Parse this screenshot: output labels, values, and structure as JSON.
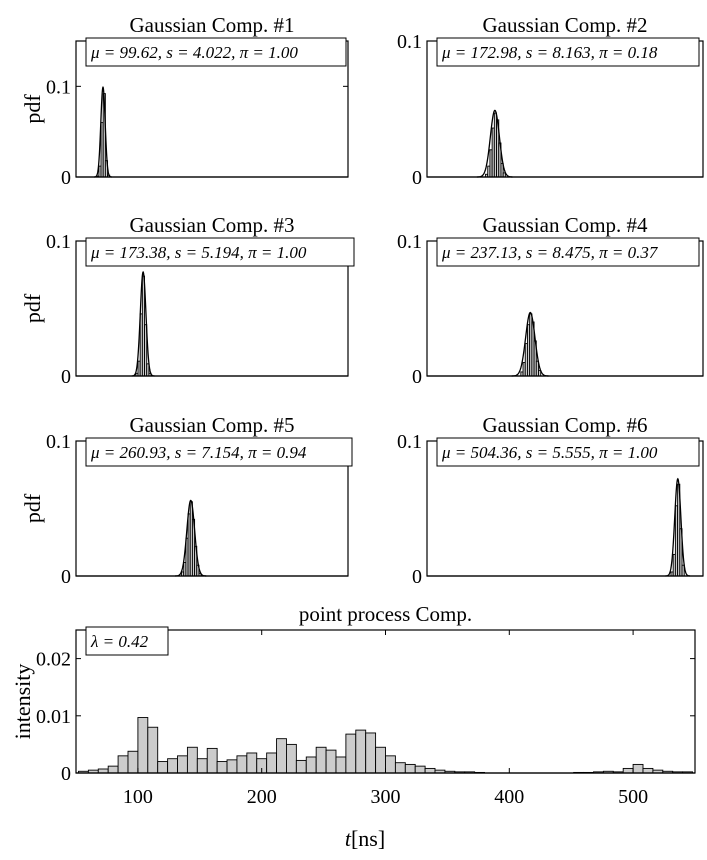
{
  "figure": {
    "xlabel": "t[ns]",
    "xlabel_main": "t",
    "xlabel_unit": "[ns]"
  },
  "colors": {
    "bar_fill": "#cccccc",
    "stroke": "#000000",
    "background": "#ffffff"
  },
  "chart_data": [
    {
      "type": "bar",
      "title": "Gaussian Comp. #1",
      "ylabel": "pdf",
      "annotation": "μ = 99.62, s = 4.022, π = 1.00",
      "mu": 99.62,
      "s": 4.022,
      "pi": 1.0,
      "xlim": [
        50,
        550
      ],
      "ylim": [
        0,
        0.15
      ],
      "yticks": [
        0,
        0.1
      ],
      "ytick_labels": [
        "0",
        "0.1"
      ],
      "bin_width": 4,
      "bins": [
        [
          88,
          0.001
        ],
        [
          92,
          0.012
        ],
        [
          96,
          0.06
        ],
        [
          100,
          0.092
        ],
        [
          104,
          0.018
        ],
        [
          108,
          0.002
        ]
      ],
      "curve": {
        "peak": 0.099,
        "sigma": 4.022
      }
    },
    {
      "type": "bar",
      "title": "Gaussian Comp. #2",
      "ylabel": "",
      "annotation": "μ = 172.98, s = 8.163, π = 0.18",
      "mu": 172.98,
      "s": 8.163,
      "pi": 0.18,
      "xlim": [
        50,
        550
      ],
      "ylim": [
        0,
        0.1
      ],
      "yticks": [
        0,
        0.1
      ],
      "ytick_labels": [
        "0",
        "0.1"
      ],
      "bin_width": 4,
      "bins": [
        [
          156,
          0.002
        ],
        [
          160,
          0.008
        ],
        [
          164,
          0.02
        ],
        [
          168,
          0.036
        ],
        [
          172,
          0.047
        ],
        [
          176,
          0.042
        ],
        [
          180,
          0.025
        ],
        [
          184,
          0.01
        ],
        [
          188,
          0.003
        ]
      ],
      "curve": {
        "peak": 0.049,
        "sigma": 8.163
      }
    },
    {
      "type": "bar",
      "title": "Gaussian Comp. #3",
      "ylabel": "pdf",
      "annotation": "μ = 173.38, s = 5.194, π = 1.00",
      "mu": 173.38,
      "s": 5.194,
      "pi": 1.0,
      "xlim": [
        50,
        550
      ],
      "ylim": [
        0,
        0.1
      ],
      "yticks": [
        0,
        0.1
      ],
      "ytick_labels": [
        "0",
        "0.1"
      ],
      "bin_width": 4,
      "bins": [
        [
          160,
          0.002
        ],
        [
          164,
          0.011
        ],
        [
          168,
          0.046
        ],
        [
          172,
          0.074
        ],
        [
          176,
          0.038
        ],
        [
          180,
          0.009
        ],
        [
          184,
          0.002
        ]
      ],
      "curve": {
        "peak": 0.077,
        "sigma": 5.194
      }
    },
    {
      "type": "bar",
      "title": "Gaussian Comp. #4",
      "ylabel": "",
      "annotation": "μ = 237.13, s = 8.475, π = 0.37",
      "mu": 237.13,
      "s": 8.475,
      "pi": 0.37,
      "xlim": [
        50,
        550
      ],
      "ylim": [
        0,
        0.1
      ],
      "yticks": [
        0,
        0.1
      ],
      "ytick_labels": [
        "0",
        "0.1"
      ],
      "bin_width": 4,
      "bins": [
        [
          220,
          0.003
        ],
        [
          224,
          0.01
        ],
        [
          228,
          0.024
        ],
        [
          232,
          0.038
        ],
        [
          236,
          0.046
        ],
        [
          240,
          0.04
        ],
        [
          244,
          0.026
        ],
        [
          248,
          0.011
        ],
        [
          252,
          0.004
        ]
      ],
      "curve": {
        "peak": 0.047,
        "sigma": 8.475
      }
    },
    {
      "type": "bar",
      "title": "Gaussian Comp. #5",
      "ylabel": "pdf",
      "annotation": "μ = 260.93, s = 7.154, π = 0.94",
      "mu": 260.93,
      "s": 7.154,
      "pi": 0.94,
      "xlim": [
        50,
        550
      ],
      "ylim": [
        0,
        0.1
      ],
      "yticks": [
        0,
        0.1
      ],
      "ytick_labels": [
        "0",
        "0.1"
      ],
      "bin_width": 4,
      "bins": [
        [
          244,
          0.003
        ],
        [
          248,
          0.01
        ],
        [
          252,
          0.028
        ],
        [
          256,
          0.046
        ],
        [
          260,
          0.055
        ],
        [
          264,
          0.042
        ],
        [
          268,
          0.022
        ],
        [
          272,
          0.008
        ],
        [
          276,
          0.002
        ]
      ],
      "curve": {
        "peak": 0.056,
        "sigma": 7.154
      }
    },
    {
      "type": "bar",
      "title": "Gaussian Comp. #6",
      "ylabel": "",
      "annotation": "μ = 504.36, s = 5.555, π = 1.00",
      "mu": 504.36,
      "s": 5.555,
      "pi": 1.0,
      "xlim": [
        50,
        550
      ],
      "ylim": [
        0,
        0.1
      ],
      "yticks": [
        0,
        0.1
      ],
      "ytick_labels": [
        "0",
        "0.1"
      ],
      "bin_width": 4,
      "bins": [
        [
          492,
          0.003
        ],
        [
          496,
          0.016
        ],
        [
          500,
          0.052
        ],
        [
          504,
          0.068
        ],
        [
          508,
          0.035
        ],
        [
          512,
          0.008
        ]
      ],
      "curve": {
        "peak": 0.072,
        "sigma": 5.555
      }
    },
    {
      "type": "bar",
      "title": "point process Comp.",
      "ylabel": "intensity",
      "annotation": "λ = 0.42",
      "lambda": 0.42,
      "xlim": [
        50,
        550
      ],
      "ylim": [
        0,
        0.025
      ],
      "yticks": [
        0,
        0.01,
        0.02
      ],
      "ytick_labels": [
        "0",
        "0.01",
        "0.02"
      ],
      "xticks": [
        100,
        200,
        300,
        400,
        500
      ],
      "xtick_labels": [
        "100",
        "200",
        "300",
        "400",
        "500"
      ],
      "bin_width": 8,
      "bins": [
        [
          52,
          0.0003
        ],
        [
          60,
          0.0005
        ],
        [
          68,
          0.0007
        ],
        [
          76,
          0.0012
        ],
        [
          84,
          0.003
        ],
        [
          92,
          0.0038
        ],
        [
          100,
          0.0097
        ],
        [
          108,
          0.008
        ],
        [
          116,
          0.002
        ],
        [
          124,
          0.0025
        ],
        [
          132,
          0.003
        ],
        [
          140,
          0.0045
        ],
        [
          148,
          0.0025
        ],
        [
          156,
          0.0043
        ],
        [
          164,
          0.002
        ],
        [
          172,
          0.0023
        ],
        [
          180,
          0.003
        ],
        [
          188,
          0.0035
        ],
        [
          196,
          0.0025
        ],
        [
          204,
          0.0035
        ],
        [
          212,
          0.006
        ],
        [
          220,
          0.005
        ],
        [
          228,
          0.0022
        ],
        [
          236,
          0.0028
        ],
        [
          244,
          0.0045
        ],
        [
          252,
          0.004
        ],
        [
          260,
          0.0028
        ],
        [
          268,
          0.0068
        ],
        [
          276,
          0.0075
        ],
        [
          284,
          0.007
        ],
        [
          292,
          0.0045
        ],
        [
          300,
          0.003
        ],
        [
          308,
          0.0018
        ],
        [
          316,
          0.0015
        ],
        [
          324,
          0.0012
        ],
        [
          332,
          0.0008
        ],
        [
          340,
          0.0005
        ],
        [
          348,
          0.0003
        ],
        [
          356,
          0.0002
        ],
        [
          364,
          0.0002
        ],
        [
          372,
          0.0001
        ],
        [
          452,
          0.0001
        ],
        [
          460,
          0.0001
        ],
        [
          468,
          0.0002
        ],
        [
          476,
          0.0003
        ],
        [
          484,
          0.0002
        ],
        [
          492,
          0.0008
        ],
        [
          500,
          0.0015
        ],
        [
          508,
          0.0008
        ],
        [
          516,
          0.0005
        ],
        [
          524,
          0.0003
        ],
        [
          532,
          0.0002
        ],
        [
          540,
          0.0002
        ]
      ]
    }
  ]
}
